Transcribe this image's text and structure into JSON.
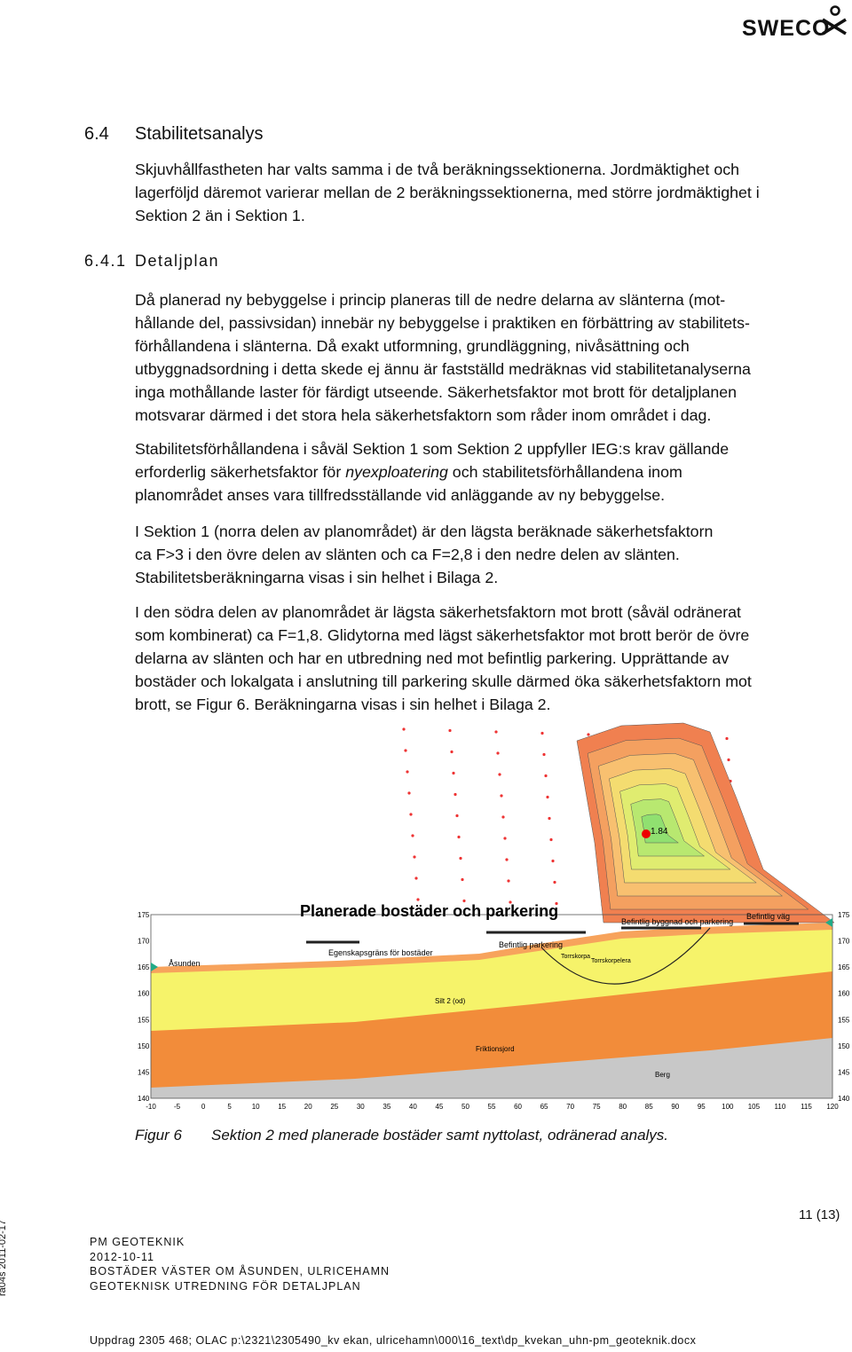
{
  "header": {
    "logo": "SWECO"
  },
  "section": {
    "number": "6.4",
    "title": "Stabilitetsanalys",
    "lines": [
      "Skjuvhållfastheten har valts samma i de två beräkningssektionerna. Jordmäktighet och",
      "lagerföljd däremot varierar mellan de 2 beräkningssektionerna, med större jordmäktighet i",
      "Sektion 2 än i Sektion 1."
    ]
  },
  "subsection": {
    "number": "6.4.1",
    "title": "Detaljplan",
    "paragraphs": [
      [
        "Då planerad ny bebyggelse i princip planeras till de nedre delarna av slänterna (mot-",
        "hållande del, passivsidan) innebär ny bebyggelse i praktiken en förbättring av stabilitets-",
        "förhållandena i slänterna. Då exakt utformning, grundläggning, nivåsättning och",
        "utbyggnadsordning i detta skede ej ännu är fastställd medräknas vid stabilitetanalyserna",
        "inga mothållande laster för färdigt utseende. Säkerhetsfaktor mot brott för detaljplanen",
        "motsvarar därmed i det stora hela säkerhetsfaktorn som råder inom området i dag."
      ],
      [
        "Stabilitetsförhållandena i såväl Sektion 1 som Sektion 2 uppfyller IEG:s krav gällande",
        [
          "erforderlig säkerhetsfaktor för ",
          "nyexploatering",
          " och stabilitetsförhållandena inom"
        ],
        "planområdet anses vara tillfredsställande vid anläggande av ny bebyggelse."
      ],
      [
        "I Sektion 1 (norra delen av planområdet) är den lägsta beräknade säkerhetsfaktorn",
        "ca F>3 i den övre delen av slänten och ca F=2,8 i den nedre delen av slänten.",
        "Stabilitetsberäkningarna visas i sin helhet i Bilaga 2."
      ],
      [
        "I den södra delen av planområdet är lägsta säkerhetsfaktorn mot brott (såväl odränerat",
        "som kombinerat) ca F=1,8. Glidytorna med lägst säkerhetsfaktor mot brott berör de övre",
        "delarna av slänten och har en utbredning ned mot befintlig parkering. Upprättande av",
        "bostäder och lokalgata i anslutning till parkering skulle därmed öka säkerhetsfaktorn mot",
        "brott, se Figur 6. Beräkningarna visas i sin helhet i Bilaga 2."
      ]
    ]
  },
  "figure": {
    "critical_value": "1.84",
    "title": "Planerade bostäder och parkering",
    "labels": {
      "building": "Befintlig byggnad och parkering",
      "road": "Befintlig väg",
      "parking": "Befintlig parkering",
      "boundary": "Egenskapsgräns för bostäder",
      "lake": "Åsunden",
      "silt": "Silt 2 (od)",
      "friction": "Friktionsjord",
      "rock": "Berg",
      "crust": "Torrskorpa",
      "crust_clay": "Torrskorpelera"
    },
    "x_ticks": [
      -10,
      -5,
      0,
      5,
      10,
      15,
      20,
      25,
      30,
      35,
      40,
      45,
      50,
      55,
      60,
      65,
      70,
      75,
      80,
      85,
      90,
      95,
      100,
      105,
      110,
      115,
      120
    ],
    "y_ticks": [
      175,
      170,
      165,
      160,
      155,
      150,
      145,
      140
    ],
    "caption_label": "Figur 6",
    "caption": "Sektion 2 med planerade bostäder samt nyttolast, odränerad analys."
  },
  "footer": {
    "page": "11 (13)",
    "lines": [
      "PM GEOTEKNIK",
      "2012-10-11",
      "BOSTÄDER VÄSTER OM ÅSUNDEN, ULRICEHAMN",
      "GEOTEKNISK UTREDNING FÖR DETALJPLAN"
    ],
    "side": "ra04s 2011-02-17",
    "path": "Uppdrag 2305 468; OLAC p:\\2321\\2305490_kv ekan, ulricehamn\\000\\16_text\\dp_kvekan_uhn-pm_geoteknik.docx"
  }
}
